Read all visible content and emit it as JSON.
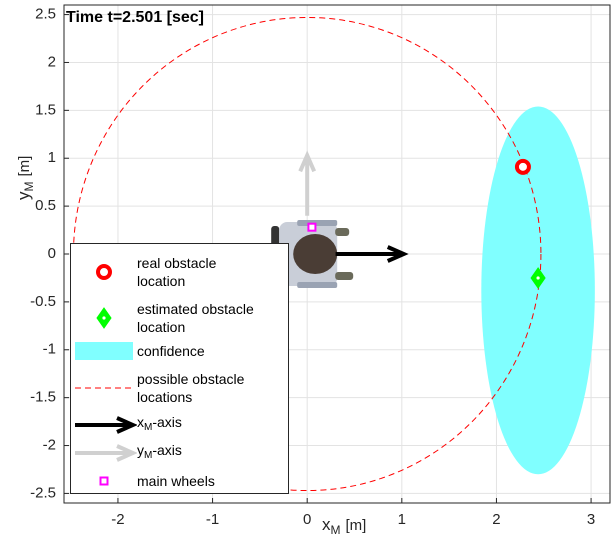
{
  "chart_data": {
    "type": "scatter",
    "title": "Time t=2.501 [sec]",
    "xlabel": {
      "base": "x",
      "sub": "M",
      "unit": "[m]"
    },
    "ylabel": {
      "base": "y",
      "sub": "M",
      "unit": "[m]"
    },
    "xlim": [
      -2.57,
      3.2
    ],
    "ylim": [
      -2.6,
      2.6
    ],
    "xticks": [
      -2,
      -1,
      0,
      1,
      2,
      3
    ],
    "yticks": [
      2.5,
      2,
      1.5,
      1,
      0.5,
      0,
      -0.5,
      -1,
      -1.5,
      -2,
      -2.5
    ],
    "grid": true,
    "series": [
      {
        "name": "real obstacle\nlocation",
        "color": "#ff0000",
        "marker": "circle",
        "x": [
          2.28
        ],
        "y": [
          0.91
        ]
      },
      {
        "name": "estimated obstacle\nlocation",
        "color": "#00ff00",
        "marker": "diamond",
        "x": [
          2.44
        ],
        "y": [
          -0.25
        ]
      },
      {
        "name": "confidence",
        "color": "#80ffff",
        "shape": "ellipse",
        "center": [
          2.44,
          -0.38
        ],
        "radii": [
          0.6,
          1.92
        ]
      },
      {
        "name": "possible obstacle\nlocations",
        "color": "#ff0000",
        "shape": "circle",
        "center": [
          0,
          0
        ],
        "radius": 2.47
      },
      {
        "name": {
          "base": "x",
          "sub": "M",
          "rest": "-axis"
        },
        "color": "#000000",
        "shape": "arrow",
        "from": [
          0.3,
          0
        ],
        "to": [
          1.02,
          0
        ]
      },
      {
        "name": {
          "base": "y",
          "sub": "M",
          "rest": "-axis"
        },
        "color": "#d0d0d0",
        "shape": "arrow",
        "from": [
          0,
          0.4
        ],
        "to": [
          0,
          1.03
        ]
      },
      {
        "name": "main wheels",
        "color": "#ff00ff",
        "marker": "square",
        "x": [
          0.05
        ],
        "y": [
          0.28
        ]
      }
    ]
  }
}
